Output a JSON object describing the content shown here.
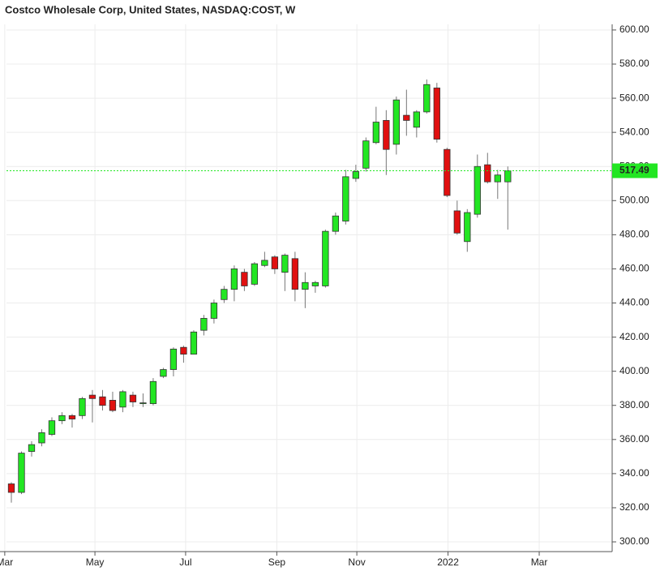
{
  "chart_data": {
    "type": "candlestick",
    "title": "Costco Wholesale Corp, United States, NASDAQ:COST, W",
    "open": [
      334,
      329,
      353,
      358,
      363,
      371,
      374,
      374,
      386,
      385,
      383,
      379,
      386,
      381,
      381,
      397,
      401,
      414,
      410,
      424,
      431,
      442,
      448,
      458,
      451,
      462,
      467,
      458,
      466,
      448,
      450,
      450,
      482,
      488,
      513,
      519,
      534,
      547,
      533,
      550,
      543,
      552,
      566,
      530,
      494,
      476,
      492,
      521,
      511,
      511
    ],
    "high": [
      335,
      353,
      359,
      366,
      373,
      376,
      375,
      385,
      389,
      389,
      388,
      389,
      388,
      387,
      396,
      402,
      414,
      415,
      424,
      433,
      442,
      450,
      462,
      460,
      464,
      470,
      468,
      469,
      470,
      458,
      453,
      483,
      493,
      518,
      521,
      537,
      555,
      553,
      561,
      565,
      553,
      571,
      569,
      531,
      500,
      495,
      527,
      528,
      518,
      520
    ],
    "low": [
      323,
      328,
      350,
      356,
      362,
      369,
      367,
      372,
      370,
      377,
      376,
      376,
      379,
      379,
      380,
      396,
      397,
      405,
      410,
      421,
      428,
      440,
      441,
      447,
      450,
      461,
      457,
      447,
      441,
      437,
      446,
      449,
      480,
      486,
      511,
      517,
      533,
      515,
      527,
      538,
      537,
      551,
      534,
      502,
      480,
      470,
      490,
      510,
      501,
      483
    ],
    "close": [
      329,
      352,
      357,
      364,
      371,
      374,
      372,
      384,
      384,
      380,
      377,
      388,
      382,
      381.5,
      394,
      401,
      413,
      410,
      423,
      431,
      440,
      448,
      460,
      450,
      463,
      465,
      460,
      468,
      448,
      452,
      452,
      482,
      491,
      514,
      517,
      535,
      546,
      530,
      559,
      547,
      552,
      568,
      536,
      503,
      481,
      493,
      520,
      511,
      515,
      517.49
    ],
    "up_color": "#22e622",
    "down_color": "#e01010",
    "last_price": 517.49,
    "price_line_color": "#22e622",
    "xlim": [
      -1,
      59.3
    ],
    "xticks": [
      {
        "value": -0.65,
        "label": "Mar"
      },
      {
        "value": 8.25,
        "label": "May"
      },
      {
        "value": 17.2,
        "label": "Jul"
      },
      {
        "value": 26.2,
        "label": "Sep"
      },
      {
        "value": 34.1,
        "label": "Nov"
      },
      {
        "value": 43.1,
        "label": "2022"
      },
      {
        "value": 52.1,
        "label": "Mar"
      }
    ],
    "ylim": [
      294.3,
      603.3
    ],
    "yticks": [
      {
        "value": 300,
        "label": "300.00"
      },
      {
        "value": 320,
        "label": "320.00"
      },
      {
        "value": 340,
        "label": "340.00"
      },
      {
        "value": 360,
        "label": "360.00"
      },
      {
        "value": 380,
        "label": "380.00"
      },
      {
        "value": 400,
        "label": "400.00"
      },
      {
        "value": 420,
        "label": "420.00"
      },
      {
        "value": 440,
        "label": "440.00"
      },
      {
        "value": 460,
        "label": "460.00"
      },
      {
        "value": 480,
        "label": "480.00"
      },
      {
        "value": 500,
        "label": "500.00"
      },
      {
        "value": 520,
        "label": "520.00"
      },
      {
        "value": 540,
        "label": "540.00"
      },
      {
        "value": 560,
        "label": "560.00"
      },
      {
        "value": 580,
        "label": "580.00"
      },
      {
        "value": 600,
        "label": "600.00"
      }
    ],
    "grid": true
  }
}
